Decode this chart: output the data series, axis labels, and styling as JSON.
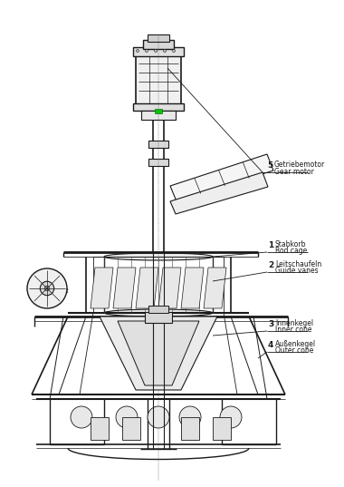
{
  "background_color": "#ffffff",
  "line_color": "#1a1a1a",
  "labels": {
    "5": [
      "Getriebemotor",
      "Gear motor"
    ],
    "1": [
      "Stabkorb",
      "Rod cage"
    ],
    "2": [
      "Leitschaufeln",
      "Guide vanes"
    ],
    "3": [
      "Innenkegel",
      "Inner cone"
    ],
    "4": [
      "Außenkegel",
      "Outer cone"
    ]
  },
  "figsize": [
    3.8,
    5.37
  ],
  "dpi": 100
}
